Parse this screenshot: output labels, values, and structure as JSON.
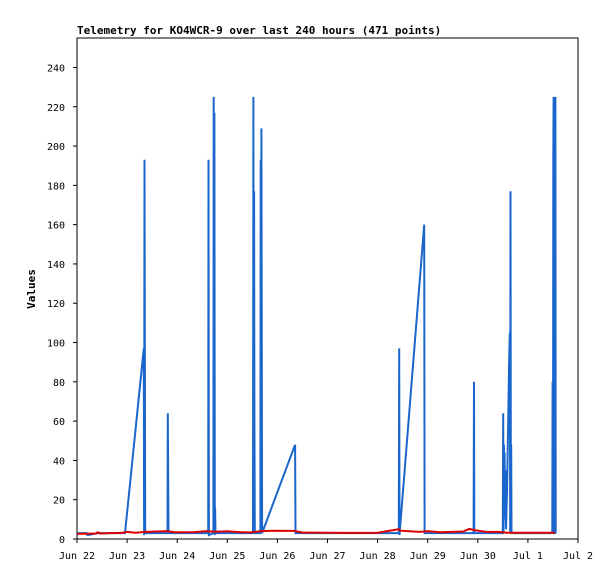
{
  "chart_data": {
    "type": "line",
    "title": "Telemetry for KO4WCR-9 over last 240 hours (471 points)",
    "xlabel": "",
    "ylabel": "Values",
    "ylim": [
      0,
      255
    ],
    "yticks": [
      0,
      20,
      40,
      60,
      80,
      100,
      120,
      140,
      160,
      180,
      200,
      220,
      240
    ],
    "xlim": [
      "2024-06-22",
      "2024-07-02"
    ],
    "xticks": [
      {
        "label": "Jun 22",
        "x": "2024-06-22"
      },
      {
        "label": "Jun 23",
        "x": "2024-06-23"
      },
      {
        "label": "Jun 24",
        "x": "2024-06-24"
      },
      {
        "label": "Jun 25",
        "x": "2024-06-25"
      },
      {
        "label": "Jun 26",
        "x": "2024-06-26"
      },
      {
        "label": "Jun 27",
        "x": "2024-06-27"
      },
      {
        "label": "Jun 28",
        "x": "2024-06-28"
      },
      {
        "label": "Jun 29",
        "x": "2024-06-29"
      },
      {
        "label": "Jun 30",
        "x": "2024-06-30"
      },
      {
        "label": "Jul 1",
        "x": "2024-07-01"
      },
      {
        "label": "Jul 2",
        "x": "2024-07-02"
      }
    ],
    "grid": false,
    "legend": "none",
    "series": [
      {
        "color": "#1a66cc",
        "points": [
          [
            "2024-06-22 00:00",
            2
          ],
          [
            "2024-06-22 00:40",
            3
          ],
          [
            "2024-06-22 04:40",
            3
          ],
          [
            "2024-06-22 05:00",
            2
          ],
          [
            "2024-06-22 10:00",
            3
          ],
          [
            "2024-06-22 17:00",
            3
          ],
          [
            "2024-06-22 22:30",
            3
          ],
          [
            "2024-06-22 23:00",
            3
          ],
          [
            "2024-06-23 08:00",
            97
          ],
          [
            "2024-06-23 08:10",
            2
          ],
          [
            "2024-06-23 08:20",
            193
          ],
          [
            "2024-06-23 08:40",
            3
          ],
          [
            "2024-06-23 19:20",
            3
          ],
          [
            "2024-06-23 19:30",
            64
          ],
          [
            "2024-06-23 19:50",
            3
          ],
          [
            "2024-06-24 14:50",
            3
          ],
          [
            "2024-06-24 15:00",
            193
          ],
          [
            "2024-06-24 15:10",
            2
          ],
          [
            "2024-06-24 17:20",
            3
          ],
          [
            "2024-06-24 17:30",
            225
          ],
          [
            "2024-06-24 17:40",
            10
          ],
          [
            "2024-06-24 17:50",
            217
          ],
          [
            "2024-06-24 18:00",
            2
          ],
          [
            "2024-06-24 18:10",
            16
          ],
          [
            "2024-06-24 18:20",
            3
          ],
          [
            "2024-06-25 12:20",
            3
          ],
          [
            "2024-06-25 12:30",
            225
          ],
          [
            "2024-06-25 12:40",
            3
          ],
          [
            "2024-06-25 12:50",
            177
          ],
          [
            "2024-06-25 13:00",
            64
          ],
          [
            "2024-06-25 13:10",
            3
          ],
          [
            "2024-06-25 15:50",
            3
          ],
          [
            "2024-06-25 16:00",
            193
          ],
          [
            "2024-06-25 16:10",
            3
          ],
          [
            "2024-06-25 16:20",
            209
          ],
          [
            "2024-06-25 16:40",
            3
          ],
          [
            "2024-06-26 08:30",
            48
          ],
          [
            "2024-06-26 08:40",
            3
          ],
          [
            "2024-06-27 12:00",
            3
          ],
          [
            "2024-06-28 10:10",
            3
          ],
          [
            "2024-06-28 10:20",
            97
          ],
          [
            "2024-06-28 10:30",
            2
          ],
          [
            "2024-06-28 22:20",
            160
          ],
          [
            "2024-06-28 22:30",
            3
          ],
          [
            "2024-06-29 22:00",
            3
          ],
          [
            "2024-06-29 22:10",
            80
          ],
          [
            "2024-06-29 22:20",
            3
          ],
          [
            "2024-06-30 12:00",
            3
          ],
          [
            "2024-06-30 12:10",
            64
          ],
          [
            "2024-06-30 12:20",
            3
          ],
          [
            "2024-06-30 12:30",
            48
          ],
          [
            "2024-06-30 12:40",
            32
          ],
          [
            "2024-06-30 12:50",
            44
          ],
          [
            "2024-06-30 13:00",
            10
          ],
          [
            "2024-06-30 13:10",
            35
          ],
          [
            "2024-06-30 13:30",
            5
          ],
          [
            "2024-06-30 14:00",
            24
          ],
          [
            "2024-06-30 14:30",
            57
          ],
          [
            "2024-06-30 15:00",
            89
          ],
          [
            "2024-06-30 15:20",
            105
          ],
          [
            "2024-06-30 15:30",
            3
          ],
          [
            "2024-06-30 15:40",
            177
          ],
          [
            "2024-06-30 15:50",
            3
          ],
          [
            "2024-06-30 16:00",
            48
          ],
          [
            "2024-06-30 16:10",
            3
          ],
          [
            "2024-07-01 11:40",
            3
          ],
          [
            "2024-07-01 11:50",
            80
          ],
          [
            "2024-07-01 12:00",
            3
          ],
          [
            "2024-07-01 12:10",
            193
          ],
          [
            "2024-07-01 12:20",
            225
          ],
          [
            "2024-07-01 12:30",
            3
          ],
          [
            "2024-07-01 13:00",
            3
          ],
          [
            "2024-07-01 13:10",
            225
          ],
          [
            "2024-07-01 13:20",
            3
          ]
        ]
      },
      {
        "color": "#dd0000",
        "points": [
          [
            "2024-06-22 00:00",
            2.6
          ],
          [
            "2024-06-22 09:00",
            2.8
          ],
          [
            "2024-06-22 10:00",
            3.4
          ],
          [
            "2024-06-22 11:00",
            2.8
          ],
          [
            "2024-06-22 22:00",
            3.2
          ],
          [
            "2024-06-23 00:00",
            3.6
          ],
          [
            "2024-06-23 04:00",
            3.2
          ],
          [
            "2024-06-23 09:00",
            3.6
          ],
          [
            "2024-06-23 14:00",
            3.8
          ],
          [
            "2024-06-23 19:00",
            4.0
          ],
          [
            "2024-06-23 23:00",
            3.4
          ],
          [
            "2024-06-24 08:00",
            3.5
          ],
          [
            "2024-06-24 14:00",
            4.0
          ],
          [
            "2024-06-24 18:00",
            3.7
          ],
          [
            "2024-06-25 00:00",
            3.9
          ],
          [
            "2024-06-25 06:00",
            3.5
          ],
          [
            "2024-06-25 11:00",
            3.3
          ],
          [
            "2024-06-25 16:00",
            4.0
          ],
          [
            "2024-06-25 22:00",
            4.2
          ],
          [
            "2024-06-26 08:00",
            4.1
          ],
          [
            "2024-06-26 12:00",
            3.3
          ],
          [
            "2024-06-27 00:00",
            3.2
          ],
          [
            "2024-06-27 12:00",
            3.1
          ],
          [
            "2024-06-28 00:00",
            3.2
          ],
          [
            "2024-06-28 08:00",
            4.6
          ],
          [
            "2024-06-28 10:00",
            5.0
          ],
          [
            "2024-06-28 11:00",
            4.2
          ],
          [
            "2024-06-28 20:00",
            3.6
          ],
          [
            "2024-06-29 00:00",
            4.0
          ],
          [
            "2024-06-29 06:00",
            3.4
          ],
          [
            "2024-06-29 17:00",
            3.8
          ],
          [
            "2024-06-29 20:00",
            5.2
          ],
          [
            "2024-06-29 22:00",
            4.6
          ],
          [
            "2024-06-30 04:00",
            3.6
          ],
          [
            "2024-06-30 10:00",
            3.6
          ],
          [
            "2024-06-30 14:00",
            3.2
          ],
          [
            "2024-07-01 00:00",
            3.2
          ],
          [
            "2024-07-01 13:00",
            3.2
          ]
        ]
      }
    ]
  }
}
